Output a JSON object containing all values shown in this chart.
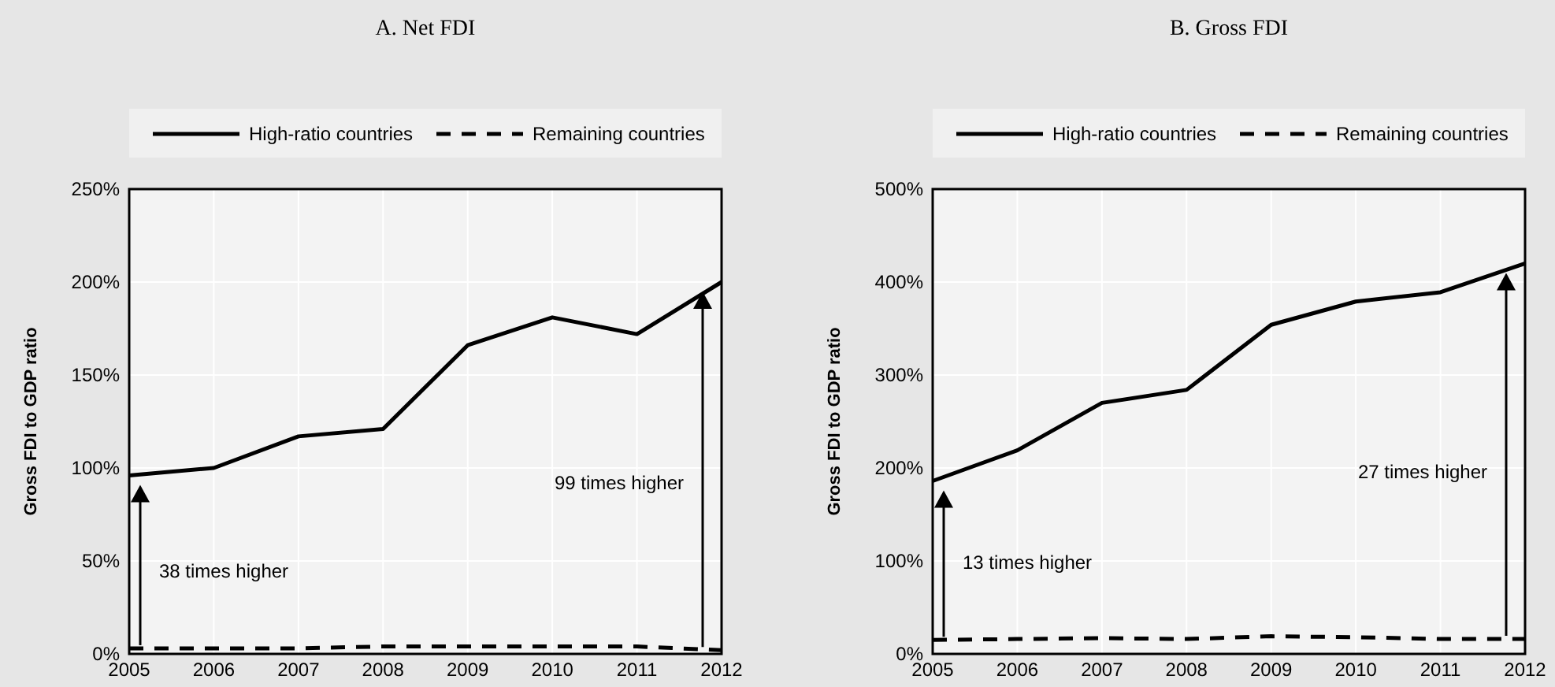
{
  "chart_data": [
    {
      "type": "line",
      "title": "A. Net FDI",
      "ylabel": "Gross FDI to GDP ratio",
      "x": [
        2005,
        2006,
        2007,
        2008,
        2009,
        2010,
        2011,
        2012
      ],
      "xlim": [
        2005,
        2012
      ],
      "xticks": [
        2005,
        2006,
        2007,
        2008,
        2009,
        2010,
        2011,
        2012
      ],
      "ylim": [
        0,
        250
      ],
      "yticks": [
        {
          "value": 0,
          "label": "0%"
        },
        {
          "value": 50,
          "label": "50%"
        },
        {
          "value": 100,
          "label": "100%"
        },
        {
          "value": 150,
          "label": "150%"
        },
        {
          "value": 200,
          "label": "200%"
        },
        {
          "value": 250,
          "label": "250%"
        }
      ],
      "grid": true,
      "legend": "top",
      "series": [
        {
          "name": "High-ratio countries",
          "color": "#000000",
          "line_style": "solid",
          "values": [
            96,
            100,
            117,
            121,
            166,
            181,
            172,
            200
          ]
        },
        {
          "name": "Remaining countries",
          "color": "#000000",
          "line_style": "dashed",
          "values": [
            3,
            3,
            3,
            4,
            4,
            4,
            4,
            2
          ]
        }
      ],
      "annotations": [
        "38 times higher",
        "99 times higher"
      ]
    },
    {
      "type": "line",
      "title": "B. Gross FDI",
      "ylabel": "Gross FDI to GDP ratio",
      "x": [
        2005,
        2006,
        2007,
        2008,
        2009,
        2010,
        2011,
        2012
      ],
      "xlim": [
        2005,
        2012
      ],
      "xticks": [
        2005,
        2006,
        2007,
        2008,
        2009,
        2010,
        2011,
        2012
      ],
      "ylim": [
        0,
        500
      ],
      "yticks": [
        {
          "value": 0,
          "label": "0%"
        },
        {
          "value": 100,
          "label": "100%"
        },
        {
          "value": 200,
          "label": "200%"
        },
        {
          "value": 300,
          "label": "300%"
        },
        {
          "value": 400,
          "label": "400%"
        },
        {
          "value": 500,
          "label": "500%"
        }
      ],
      "grid": true,
      "legend": "top",
      "series": [
        {
          "name": "High-ratio countries",
          "color": "#000000",
          "line_style": "solid",
          "values": [
            186,
            219,
            270,
            284,
            354,
            379,
            389,
            420
          ]
        },
        {
          "name": "Remaining countries",
          "color": "#000000",
          "line_style": "dashed",
          "values": [
            15,
            16,
            17,
            16,
            19,
            18,
            16,
            16
          ]
        }
      ],
      "annotations": [
        "13 times higher",
        "27 times higher"
      ]
    }
  ]
}
